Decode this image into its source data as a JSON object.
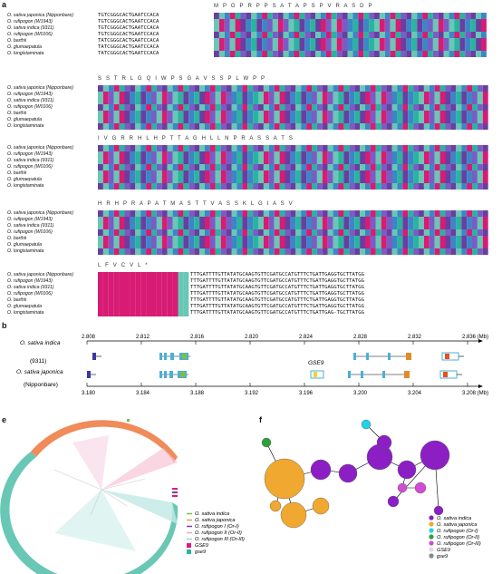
{
  "panels": {
    "a": "a",
    "b": "b",
    "e": "e",
    "f": "f"
  },
  "panel_a": {
    "blocks": [
      {
        "names": [
          "O. sativa japonica (Nipponbare)",
          "O. rufipogon (W1943)",
          "O. sativa indica (9311)",
          "O. rufipogon (W0106)",
          "O. barthii",
          "O. glumaepatula",
          "O. longistaminata"
        ],
        "aa": "M   P   G   P   R   P   P   S   A   T   A   P   S   P   V   R   A   S   D   P",
        "seq_prefix": [
          "TGTCGGGCACTGAATCCACA",
          "TGTCGGGCACTGAATCCACA",
          "TGTCGGGCACTGAATCCACA",
          "TGTCGGGCACTGAATCCACA",
          "TATCGGGCACTGAATCCACA",
          "TATCGGGCACTGAATCCACA",
          "TATCGGGCACTGAATCCACA"
        ]
      },
      {
        "names": [
          "O. sativa japonica (Nipponbare)",
          "O. rufipogon (W1943)",
          "O. sativa indica (9311)",
          "O. rufipogon (W0106)",
          "O. barthii",
          "O. glumaepatula",
          "O. longistaminata"
        ],
        "aa": "S   S   T   R   L   G   Q   I   W   P   S   G   A   V   S   S   P   L   W   P   P"
      },
      {
        "names": [
          "O. sativa japonica (Nipponbare)",
          "O. rufipogon (W1943)",
          "O. sativa indica (9311)",
          "O. rufipogon (W0106)",
          "O. barthii",
          "O. glumaepatula",
          "O. longistaminata"
        ],
        "aa": "I   V   G   R   R   H   L   H   P   T   T   A   G   H   L   L   N   P   R   A   S   S   A   T   S"
      },
      {
        "names": [
          "O. sativa japonica (Nipponbare)",
          "O. rufipogon (W1943)",
          "O. sativa indica (9311)",
          "O. rufipogon (W0106)",
          "O. barthii",
          "O. glumaepatula",
          "O. longistaminata"
        ],
        "aa": "H   R   H   P   R   A   P   A   T   M   A   S   T   T   V   A   S   S   K   L   G   I   A   S   V"
      },
      {
        "names": [
          "O. sativa japonica (Nipponbare)",
          "O. rufipogon (W1943)",
          "O. sativa indica (9311)",
          "O. rufipogon (W0106)",
          "O. barthii",
          "O. glumaepatula",
          "O. longistaminata"
        ],
        "aa": "L   F   V   C   V   L   *",
        "seq_suffix": [
          "TTTGATTTTGTTATATGCAAGTGTTCGATGCCATGTTTCTGATTGAGGTGCTTATGG",
          "TTTGATTTTGTTATATGCAAGTGTTCGATGCCATGTTTCTGATTGAGGTGCTTATGG",
          "TTTGATTTTGTTATATGCAAGTGTTCGATGCCATGTTTCTGATTGAGGTGCTTATGG",
          "TTTGATTTTGTTATATGCAAGTGTTCGATGCCATGTTTCTGATTGAGGTGCTTATGG",
          "TTTGATTTTGTTATATGCAAGTGTTCGATGCCATGTTTCTGATTGAGGTGCTTATGG",
          "TTTGATTTTGTTATATGCAAGTGTTCGATGCCATGTTTCTGATTGAGGTGCTTATGG",
          "TTTGATTTTGTTATATGCAAGTGTTCGATGCCATGTTTCTGATTGAG-TGCTTATGG"
        ]
      }
    ]
  },
  "panel_b": {
    "track1_label": "O. sativa indica",
    "track1_sub": "(9311)",
    "track2_label": "O. sativa japonica",
    "track2_sub": "(Nipponbare)",
    "top_ticks": [
      "2.808",
      "2.812",
      "2.816",
      "2.820",
      "2.824",
      "2.828",
      "2.832",
      "2.836 (Mb)"
    ],
    "bottom_ticks": [
      "3.180",
      "3.184",
      "3.188",
      "3.192",
      "3.196",
      "3.200",
      "3.204",
      "3.208 (Mb)"
    ],
    "gene_label": "GSE9"
  },
  "panel_e": {
    "legend": [
      "O. sativa indica",
      "O. sativa japonica",
      "O. rufipogon I (Or-I)",
      "O. rufipogon II (Or-II)",
      "O. rufipogon III (Or-III)",
      "GSE9",
      "gse9"
    ],
    "legend_colors": [
      "#7fbf3f",
      "#e8a33d",
      "#7a3fa0",
      "#f2a8b8",
      "#9ad7cf",
      "#e0197d",
      "#2ab3a0"
    ]
  },
  "panel_f": {
    "legend": [
      "O. sativa indica",
      "O. sativa japonica",
      "O. rufipogon (Or-I)",
      "O. rufipogon (Or-II)",
      "O. rufipogon (Or-III)",
      "GSE9",
      "gse9"
    ],
    "legend_colors": [
      "#8b1fc4",
      "#f0a830",
      "#1fd3e8",
      "#2f9f3a",
      "#d24cd3",
      "#dddddd",
      "#888888"
    ]
  },
  "colors": {
    "purple": "#6a3ea0",
    "teal": "#69c7b5",
    "pink": "#d81b74",
    "blue": "#3d86c6",
    "orange": "#f08b5a"
  }
}
